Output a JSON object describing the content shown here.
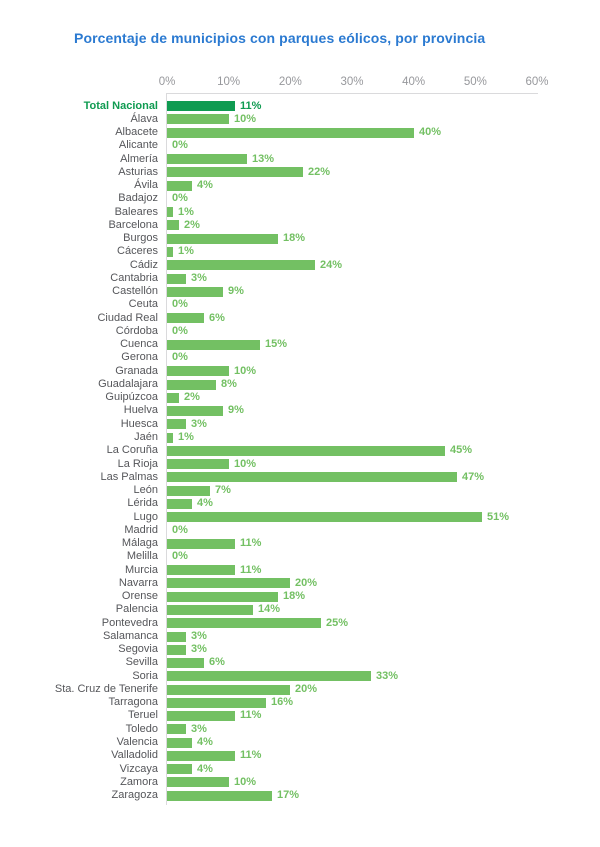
{
  "chart_data": {
    "type": "bar",
    "orientation": "horizontal",
    "title": "Porcentaje de municipios con parques eólicos, por provincia",
    "unit": "%",
    "x_axis": {
      "position": "top",
      "min": 0,
      "max": 60,
      "tick_step": 10,
      "ticks": [
        "0%",
        "10%",
        "20%",
        "30%",
        "40%",
        "50%",
        "60%"
      ]
    },
    "legend": "none",
    "grid": "zero-line-only",
    "highlight_category": "Total Nacional",
    "categories": [
      "Total Nacional",
      "Álava",
      "Albacete",
      "Alicante",
      "Almería",
      "Asturias",
      "Ávila",
      "Badajoz",
      "Baleares",
      "Barcelona",
      "Burgos",
      "Cáceres",
      "Cádiz",
      "Cantabria",
      "Castellón",
      "Ceuta",
      "Ciudad Real",
      "Córdoba",
      "Cuenca",
      "Gerona",
      "Granada",
      "Guadalajara",
      "Guipúzcoa",
      "Huelva",
      "Huesca",
      "Jaén",
      "La Coruña",
      "La Rioja",
      "Las Palmas",
      "León",
      "Lérida",
      "Lugo",
      "Madrid",
      "Málaga",
      "Melilla",
      "Murcia",
      "Navarra",
      "Orense",
      "Palencia",
      "Pontevedra",
      "Salamanca",
      "Segovia",
      "Sevilla",
      "Soria",
      "Sta. Cruz de Tenerife",
      "Tarragona",
      "Teruel",
      "Toledo",
      "Valencia",
      "Valladolid",
      "Vizcaya",
      "Zamora",
      "Zaragoza"
    ],
    "values": [
      11,
      10,
      40,
      0,
      13,
      22,
      4,
      0,
      1,
      2,
      18,
      1,
      24,
      3,
      9,
      0,
      6,
      0,
      15,
      0,
      10,
      8,
      2,
      9,
      3,
      1,
      45,
      10,
      47,
      7,
      4,
      51,
      0,
      11,
      0,
      11,
      20,
      18,
      14,
      25,
      3,
      3,
      6,
      33,
      20,
      16,
      11,
      3,
      4,
      11,
      4,
      10,
      17
    ],
    "colors": {
      "title": "#2b7ad1",
      "bar": "#73c063",
      "highlight_bar": "#0f9b51",
      "value_label": "#73c063",
      "highlight_value_label": "#0f9b51",
      "category_label": "#55565a",
      "highlight_category_label": "#0f9b51",
      "tick_label": "#97989c",
      "axis_line": "#dadadc"
    }
  }
}
